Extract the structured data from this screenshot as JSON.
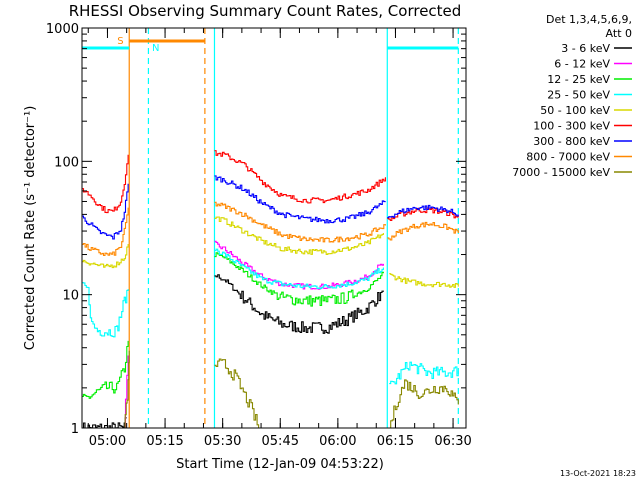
{
  "chart_data": {
    "type": "line",
    "title": "RHESSI Observing Summary Count Rates, Corrected",
    "xlabel": "Start Time (12-Jan-09 04:53:22)",
    "ylabel": "Corrected Count Rate (s⁻¹ detector⁻¹)",
    "y_scale": "log",
    "ylim": [
      1,
      1000
    ],
    "y_ticks": [
      {
        "value": 1,
        "label": "1"
      },
      {
        "value": 10,
        "label": "10"
      },
      {
        "value": 100,
        "label": "100"
      },
      {
        "value": 1000,
        "label": "1000"
      }
    ],
    "x_unit": "minutes after 04:53:22",
    "xlim": [
      0,
      100
    ],
    "x_ticks": [
      {
        "value": 6.63,
        "label": "05:00"
      },
      {
        "value": 21.63,
        "label": "05:15"
      },
      {
        "value": 36.63,
        "label": "05:30"
      },
      {
        "value": 51.63,
        "label": "05:45"
      },
      {
        "value": 66.63,
        "label": "06:00"
      },
      {
        "value": 81.63,
        "label": "06:15"
      },
      {
        "value": 96.63,
        "label": "06:30"
      }
    ],
    "legend": {
      "placement": "right",
      "header": [
        "Det 1,3,4,5,6,9,",
        "Att 0"
      ],
      "entries": [
        {
          "label": "3 - 6 keV",
          "color": "#000000"
        },
        {
          "label": "6 - 12 keV",
          "color": "#ff00ff"
        },
        {
          "label": "12 - 25 keV",
          "color": "#00ee00"
        },
        {
          "label": "25 - 50 keV",
          "color": "#00ffff"
        },
        {
          "label": "50 - 100 keV",
          "color": "#d8d800"
        },
        {
          "label": "100 - 300 keV",
          "color": "#ff0000"
        },
        {
          "label": "300 - 800 keV",
          "color": "#0000ff"
        },
        {
          "label": "800 - 7000 keV",
          "color": "#ff8800"
        },
        {
          "label": "7000 - 15000 keV",
          "color": "#888800"
        }
      ]
    },
    "series": [
      {
        "name": "3 - 6 keV",
        "color": "#000000",
        "segments": [
          [
            [
              0,
              1
            ],
            [
              11,
              1
            ],
            [
              11.5,
              1.2
            ]
          ],
          [
            [
              34.5,
              14
            ],
            [
              37,
              13
            ],
            [
              42,
              9.5
            ],
            [
              47,
              7
            ],
            [
              52,
              6
            ],
            [
              58,
              5.6
            ],
            [
              64,
              5.7
            ],
            [
              69,
              6.5
            ],
            [
              74,
              7.8
            ],
            [
              77,
              9.5
            ],
            [
              78.5,
              10.5
            ]
          ]
        ]
      },
      {
        "name": "6 - 12 keV",
        "color": "#ff00ff",
        "segments": [
          [
            [
              11,
              1
            ],
            [
              12,
              3.5
            ]
          ],
          [
            [
              34.5,
              24
            ],
            [
              37,
              22
            ],
            [
              42,
              17
            ],
            [
              47,
              13.5
            ],
            [
              52,
              12
            ],
            [
              58,
              11.5
            ],
            [
              64,
              11.5
            ],
            [
              69,
              12.2
            ],
            [
              74,
              13.5
            ],
            [
              77,
              16
            ],
            [
              78.5,
              17
            ]
          ]
        ]
      },
      {
        "name": "12 - 25 keV",
        "color": "#00ee00",
        "segments": [
          [
            [
              0,
              1.6
            ],
            [
              3,
              1.8
            ],
            [
              6,
              2
            ],
            [
              9,
              2
            ],
            [
              11,
              2.8
            ],
            [
              12,
              4.5
            ]
          ],
          [
            [
              34.5,
              20
            ],
            [
              37,
              19
            ],
            [
              42,
              15
            ],
            [
              47,
              11.5
            ],
            [
              52,
              9.5
            ],
            [
              58,
              9
            ],
            [
              64,
              9
            ],
            [
              69,
              9.5
            ],
            [
              74,
              11
            ],
            [
              77,
              13
            ],
            [
              78.5,
              14.5
            ]
          ]
        ]
      },
      {
        "name": "25 - 50 keV",
        "color": "#00ffff",
        "segments": [
          [
            [
              0,
              12
            ],
            [
              1.5,
              11
            ],
            [
              2.5,
              6
            ],
            [
              4,
              5.4
            ],
            [
              7,
              5.3
            ],
            [
              9,
              5.4
            ],
            [
              10,
              7
            ],
            [
              11,
              9
            ],
            [
              12,
              11
            ]
          ],
          [
            [
              34.5,
              22
            ],
            [
              37,
              20
            ],
            [
              42,
              16
            ],
            [
              47,
              13
            ],
            [
              52,
              12
            ],
            [
              58,
              11.5
            ],
            [
              64,
              11.5
            ],
            [
              69,
              12
            ],
            [
              74,
              13
            ],
            [
              77,
              15
            ],
            [
              78.5,
              16
            ]
          ],
          [
            [
              80,
              2
            ],
            [
              85,
              3
            ],
            [
              90,
              2.6
            ],
            [
              95,
              2.6
            ],
            [
              98,
              2.7
            ]
          ]
        ]
      },
      {
        "name": "50 - 100 keV",
        "color": "#d8d800",
        "segments": [
          [
            [
              0,
              18
            ],
            [
              3,
              17
            ],
            [
              6,
              16
            ],
            [
              9,
              17
            ],
            [
              11,
              19
            ],
            [
              12,
              24
            ]
          ],
          [
            [
              34.5,
              38
            ],
            [
              37,
              36
            ],
            [
              42,
              30
            ],
            [
              47,
              25
            ],
            [
              52,
              22
            ],
            [
              58,
              21
            ],
            [
              64,
              21
            ],
            [
              69,
              22
            ],
            [
              74,
              24
            ],
            [
              77,
              27
            ],
            [
              78.5,
              29
            ]
          ],
          [
            [
              80,
              14
            ],
            [
              85,
              12.5
            ],
            [
              90,
              12
            ],
            [
              95,
              12
            ],
            [
              98,
              11.5
            ]
          ]
        ]
      },
      {
        "name": "100 - 300 keV",
        "color": "#ff0000",
        "segments": [
          [
            [
              0,
              62
            ],
            [
              2,
              56
            ],
            [
              4,
              48
            ],
            [
              6,
              43
            ],
            [
              8,
              42
            ],
            [
              10,
              50
            ],
            [
              11,
              70
            ],
            [
              12,
              112
            ]
          ],
          [
            [
              34.5,
              115
            ],
            [
              37,
              112
            ],
            [
              42,
              95
            ],
            [
              47,
              70
            ],
            [
              52,
              55
            ],
            [
              58,
              51
            ],
            [
              64,
              51
            ],
            [
              69,
              55
            ],
            [
              74,
              60
            ],
            [
              77,
              68
            ],
            [
              79,
              76
            ]
          ],
          [
            [
              79.5,
              36
            ],
            [
              83,
              40
            ],
            [
              87,
              43
            ],
            [
              91,
              43
            ],
            [
              95,
              41
            ],
            [
              98,
              38
            ]
          ]
        ]
      },
      {
        "name": "300 - 800 keV",
        "color": "#0000ff",
        "segments": [
          [
            [
              0,
              38
            ],
            [
              2,
              34
            ],
            [
              4,
              30
            ],
            [
              6,
              28
            ],
            [
              8,
              27
            ],
            [
              10,
              31
            ],
            [
              11,
              42
            ],
            [
              12,
              68
            ]
          ],
          [
            [
              34.5,
              76
            ],
            [
              37,
              72
            ],
            [
              42,
              62
            ],
            [
              47,
              48
            ],
            [
              52,
              40
            ],
            [
              58,
              37
            ],
            [
              64,
              36
            ],
            [
              69,
              37
            ],
            [
              74,
              41
            ],
            [
              77,
              46
            ],
            [
              79,
              50
            ]
          ],
          [
            [
              79.5,
              38
            ],
            [
              83,
              42
            ],
            [
              87,
              45
            ],
            [
              91,
              45
            ],
            [
              95,
              43
            ],
            [
              98,
              40
            ]
          ]
        ]
      },
      {
        "name": "800 - 7000 keV",
        "color": "#ff8800",
        "segments": [
          [
            [
              0,
              24
            ],
            [
              2,
              22
            ],
            [
              4,
              21
            ],
            [
              6,
              20
            ],
            [
              8,
              20
            ],
            [
              10,
              23
            ],
            [
              11,
              30
            ],
            [
              12,
              45
            ]
          ],
          [
            [
              34.5,
              48
            ],
            [
              37,
              46
            ],
            [
              42,
              40
            ],
            [
              47,
              33
            ],
            [
              52,
              28
            ],
            [
              58,
              26
            ],
            [
              64,
              25.5
            ],
            [
              69,
              26.5
            ],
            [
              74,
              28
            ],
            [
              77,
              31
            ],
            [
              79,
              33
            ]
          ],
          [
            [
              79.5,
              26
            ],
            [
              83,
              30
            ],
            [
              87,
              33
            ],
            [
              91,
              34
            ],
            [
              95,
              32
            ],
            [
              98,
              29
            ]
          ]
        ]
      },
      {
        "name": "7000 - 15000 keV",
        "color": "#888800",
        "segments": [
          [
            [
              11,
              1
            ],
            [
              11.5,
              1.4
            ],
            [
              12,
              2.2
            ],
            [
              12.3,
              3.8
            ]
          ],
          [
            [
              34.5,
              3
            ],
            [
              37,
              3
            ],
            [
              40,
              2.4
            ],
            [
              44,
              1.4
            ],
            [
              46,
              1
            ]
          ],
          [
            [
              80,
              1
            ],
            [
              82,
              1.6
            ],
            [
              84,
              2.2
            ],
            [
              88,
              1.8
            ],
            [
              92,
              2
            ],
            [
              95,
              2
            ],
            [
              98,
              1.5
            ]
          ]
        ]
      }
    ],
    "annotations": [
      {
        "label": "S",
        "color": "#ff8800",
        "x_start": 12.3,
        "x_end": 32
      },
      {
        "label": "N",
        "color": "#00ffff",
        "x_start": 0,
        "x_end": 12.3
      },
      {
        "label": "",
        "color": "#00ffff",
        "x_start": 79.5,
        "x_end": 98
      }
    ],
    "vertical_markers": [
      {
        "x": 12.3,
        "color": "#ff8800",
        "style": "solid"
      },
      {
        "x": 17.3,
        "color": "#00ffff",
        "style": "dashed"
      },
      {
        "x": 32,
        "color": "#ff8800",
        "style": "dashed"
      },
      {
        "x": 34.5,
        "color": "#00ffff",
        "style": "solid"
      },
      {
        "x": 79.5,
        "color": "#00ffff",
        "style": "solid"
      },
      {
        "x": 98,
        "color": "#00ffff",
        "style": "dashed"
      }
    ],
    "footer_date": "13-Oct-2021 18:23"
  }
}
